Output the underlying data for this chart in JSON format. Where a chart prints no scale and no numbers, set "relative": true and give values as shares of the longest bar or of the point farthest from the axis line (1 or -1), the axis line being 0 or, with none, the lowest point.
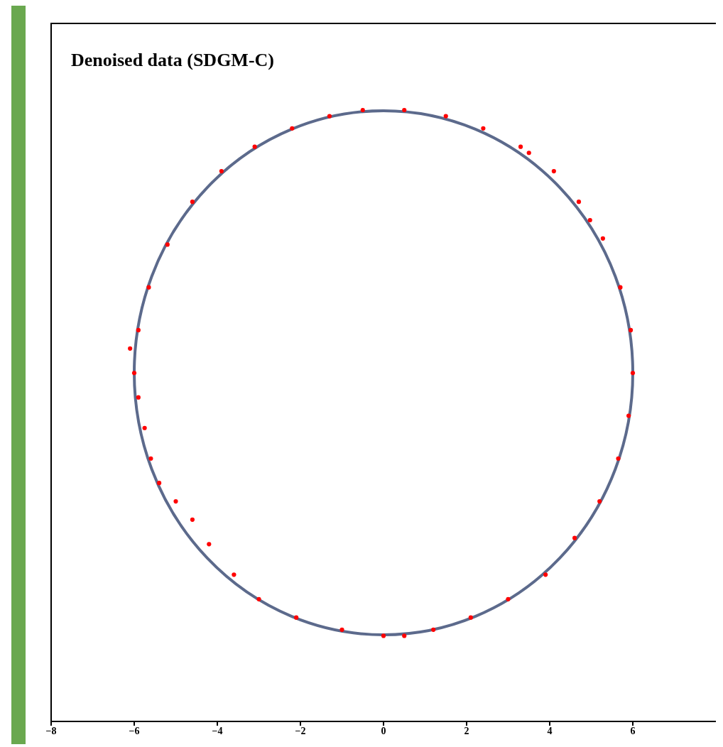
{
  "chart_data": {
    "type": "scatter",
    "title": "Denoised data (SDGM-C)",
    "relative": true,
    "xlim": [
      -8,
      8
    ],
    "xticks": [
      -8,
      -6,
      -4,
      -2,
      0,
      2,
      4,
      6
    ],
    "tick_labels": "x",
    "grid": false,
    "series": [
      {
        "color": "#ff0000",
        "marker": "circle",
        "x": [
          6,
          5.95,
          5.7,
          5.28,
          4.97,
          4.7,
          4.1,
          3.5,
          3.3,
          2.4,
          1.5,
          0.5,
          -0.5,
          -1.3,
          -2.2,
          -3.1,
          -3.9,
          -4.6,
          -5.2,
          -5.65,
          -5.9,
          -6.1,
          -6,
          -5.9,
          -5.75,
          -5.6,
          -5.4,
          -5,
          -4.6,
          -4.2,
          -3.6,
          -3,
          -2.1,
          -1,
          0,
          0.5,
          1.2,
          2.1,
          3,
          3.9,
          4.6,
          5.2,
          5.65,
          5.9
        ],
        "values": [
          0.57,
          0.64,
          0.71,
          0.79,
          0.82,
          0.85,
          0.9,
          0.93,
          0.94,
          0.97,
          0.99,
          1,
          1,
          0.99,
          0.97,
          0.94,
          0.9,
          0.85,
          0.78,
          0.71,
          0.64,
          0.61,
          0.57,
          0.53,
          0.48,
          0.43,
          0.39,
          0.36,
          0.33,
          0.29,
          0.24,
          0.2,
          0.17,
          0.15,
          0.14,
          0.14,
          0.15,
          0.17,
          0.2,
          0.24,
          0.3,
          0.36,
          0.43,
          0.5
        ]
      }
    ]
  }
}
